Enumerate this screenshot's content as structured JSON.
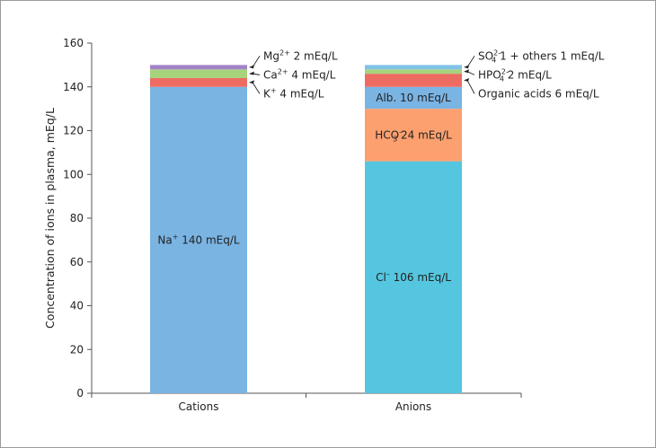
{
  "chart_data": {
    "type": "bar",
    "stacked": true,
    "ylabel": "Concentration of ions in plasma, mEq/L",
    "ylim": [
      0,
      160
    ],
    "yticks": [
      0,
      20,
      40,
      60,
      80,
      100,
      120,
      140,
      160
    ],
    "categories": [
      "Cations",
      "Anions"
    ],
    "stacks": [
      {
        "category": "Cations",
        "segments": [
          {
            "ion": "Na+",
            "value": 140,
            "color": "#7ab4e3",
            "label": {
              "base": "Na",
              "sup": "+",
              "text": " 140 mEq/L"
            },
            "placement": "inside"
          },
          {
            "ion": "K+",
            "value": 4,
            "color": "#ee6b62",
            "label": {
              "base": "K",
              "sup": "+",
              "text": " 4 mEq/L"
            },
            "placement": "outside"
          },
          {
            "ion": "Ca2+",
            "value": 4,
            "color": "#a7d37d",
            "label": {
              "base": "Ca",
              "sup": "2+",
              "text": " 4 mEq/L"
            },
            "placement": "outside"
          },
          {
            "ion": "Mg2+",
            "value": 2,
            "color": "#a383c8",
            "label": {
              "base": "Mg",
              "sup": "2+",
              "text": " 2 mEq/L"
            },
            "placement": "outside"
          }
        ]
      },
      {
        "category": "Anions",
        "segments": [
          {
            "ion": "Cl-",
            "value": 106,
            "color": "#55c6e0",
            "label": {
              "base": "Cl",
              "sup": "–",
              "text": " 106 mEq/L"
            },
            "placement": "inside"
          },
          {
            "ion": "HCO3-",
            "value": 24,
            "color": "#fca070",
            "label": {
              "base": "HCO",
              "sub": "3",
              "sup": "–",
              "text": " 24 mEq/L"
            },
            "placement": "inside"
          },
          {
            "ion": "Alb.",
            "value": 10,
            "color": "#7ab4e3",
            "label": {
              "base": "Alb. 10 mEq/L"
            },
            "placement": "inside"
          },
          {
            "ion": "Organic acids",
            "value": 6,
            "color": "#ee6b62",
            "label": {
              "base": "Organic acids 6 mEq/L"
            },
            "placement": "outside"
          },
          {
            "ion": "HPO4 2-",
            "value": 2,
            "color": "#a7d37d",
            "label": {
              "base": "HPO",
              "sub": "4",
              "sup": "2–",
              "text": " 2 mEq/L"
            },
            "placement": "outside"
          },
          {
            "ion": "SO4 2- + others",
            "value": 2,
            "color": "#7fc3e8",
            "label": {
              "base": "SO",
              "sub": "4",
              "sup": "2–",
              "text": " 1 + others 1 mEq/L"
            },
            "placement": "outside"
          }
        ]
      }
    ],
    "grid": false,
    "legend": "none"
  }
}
